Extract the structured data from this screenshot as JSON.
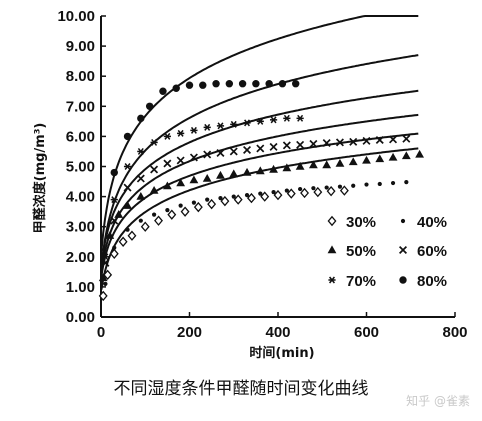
{
  "caption": "不同湿度条件甲醛随时间变化曲线",
  "watermark": "知乎 @雀素",
  "chart_data": {
    "type": "scatter",
    "title": "",
    "xlabel": "时间(min)",
    "ylabel": "甲醛浓度(mg/m³)",
    "xlim": [
      0,
      800
    ],
    "ylim": [
      0,
      10
    ],
    "x_ticks": [
      "0",
      "200",
      "400",
      "600",
      "800"
    ],
    "y_ticks": [
      "0.00",
      "1.00",
      "2.00",
      "3.00",
      "4.00",
      "5.00",
      "6.00",
      "7.00",
      "8.00",
      "9.00",
      "10.00"
    ],
    "legend_position": "inside lower-right",
    "grid": false,
    "color": "#111111",
    "series": [
      {
        "name": "30%",
        "marker": "diamond",
        "x": [
          5,
          15,
          30,
          50,
          70,
          100,
          130,
          160,
          190,
          220,
          250,
          280,
          310,
          340,
          370,
          400,
          430,
          460,
          490,
          520,
          550
        ],
        "y": [
          0.7,
          1.4,
          2.1,
          2.5,
          2.7,
          3.0,
          3.2,
          3.4,
          3.5,
          3.65,
          3.75,
          3.85,
          3.9,
          3.95,
          4.0,
          4.05,
          4.1,
          4.12,
          4.15,
          4.18,
          4.2
        ],
        "fit": [
          0.8,
          1.12
        ]
      },
      {
        "name": "40%",
        "marker": "dot",
        "x": [
          10,
          30,
          60,
          90,
          120,
          150,
          180,
          210,
          240,
          270,
          300,
          330,
          360,
          390,
          420,
          450,
          480,
          510,
          540,
          570,
          600,
          630,
          660,
          690
        ],
        "y": [
          1.1,
          2.3,
          2.9,
          3.2,
          3.4,
          3.55,
          3.7,
          3.8,
          3.9,
          3.95,
          4.0,
          4.05,
          4.1,
          4.15,
          4.2,
          4.25,
          4.28,
          4.3,
          4.33,
          4.36,
          4.4,
          4.42,
          4.45,
          4.48
        ],
        "fit": [
          1.25,
          1.13
        ]
      },
      {
        "name": "50%",
        "marker": "triangle",
        "x": [
          5,
          20,
          40,
          60,
          90,
          120,
          150,
          180,
          210,
          240,
          270,
          300,
          330,
          360,
          390,
          420,
          450,
          480,
          510,
          540,
          570,
          600,
          630,
          660,
          690,
          720
        ],
        "y": [
          1.3,
          2.7,
          3.4,
          3.7,
          4.0,
          4.2,
          4.35,
          4.45,
          4.55,
          4.6,
          4.7,
          4.75,
          4.8,
          4.85,
          4.9,
          4.95,
          5.0,
          5.05,
          5.05,
          5.1,
          5.15,
          5.2,
          5.25,
          5.3,
          5.35,
          5.4
        ],
        "fit": [
          1.4,
          1.24
        ]
      },
      {
        "name": "60%",
        "marker": "cross",
        "x": [
          10,
          30,
          60,
          90,
          120,
          150,
          180,
          210,
          240,
          270,
          300,
          330,
          360,
          390,
          420,
          450,
          480,
          510,
          540,
          570,
          600,
          630,
          660,
          690
        ],
        "y": [
          1.8,
          3.2,
          4.3,
          4.6,
          4.9,
          5.1,
          5.2,
          5.3,
          5.4,
          5.45,
          5.5,
          5.55,
          5.6,
          5.65,
          5.7,
          5.72,
          5.75,
          5.78,
          5.8,
          5.82,
          5.85,
          5.88,
          5.9,
          5.92
        ],
        "fit": [
          1.6,
          1.38
        ]
      },
      {
        "name": "70%",
        "marker": "asterisk",
        "x": [
          10,
          30,
          60,
          90,
          120,
          150,
          180,
          210,
          240,
          270,
          300,
          330,
          360,
          390,
          420,
          450
        ],
        "y": [
          2.0,
          3.9,
          5.0,
          5.5,
          5.8,
          6.0,
          6.1,
          6.2,
          6.3,
          6.35,
          6.4,
          6.45,
          6.5,
          6.55,
          6.6,
          6.6
        ],
        "fit": [
          1.5,
          1.68
        ]
      },
      {
        "name": "80%",
        "marker": "circle",
        "x": [
          30,
          60,
          90,
          110,
          140,
          170,
          200,
          230,
          260,
          290,
          320,
          350,
          380,
          410,
          440
        ],
        "y": [
          4.8,
          6.0,
          6.6,
          7.0,
          7.5,
          7.6,
          7.7,
          7.7,
          7.75,
          7.75,
          7.75,
          7.75,
          7.75,
          7.75,
          7.75
        ],
        "fit": [
          2.0,
          1.95
        ]
      }
    ]
  }
}
